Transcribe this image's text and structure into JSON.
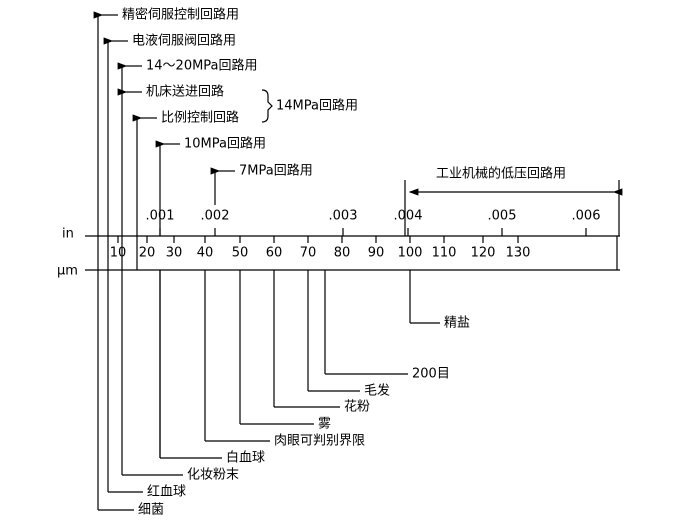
{
  "top_labels": [
    "精密伺服控制回路用",
    "电液伺服阀回路用",
    "14～20MPa回路用",
    "机床送进回路",
    "比例控制回路",
    "10MPa回路用",
    "7MPa回路用"
  ],
  "brace_label": "14MPa回路用",
  "range_label": "工业机械的低压回路用",
  "in_axis": {
    "label": "in",
    "ticks": [
      ".001",
      ".002",
      ".003",
      ".004",
      ".005",
      ".006"
    ]
  },
  "um_axis": {
    "label": "μm",
    "ticks": [
      "10",
      "20",
      "30",
      "40",
      "50",
      "60",
      "70",
      "80",
      "90",
      "100",
      "110",
      "120",
      "130"
    ]
  },
  "bottom_labels": [
    "精盐",
    "200目",
    "毛发",
    "花粉",
    "雾",
    "肉眼可判别界限",
    "白血球",
    "化妆粉末",
    "红血球",
    "细菌"
  ]
}
